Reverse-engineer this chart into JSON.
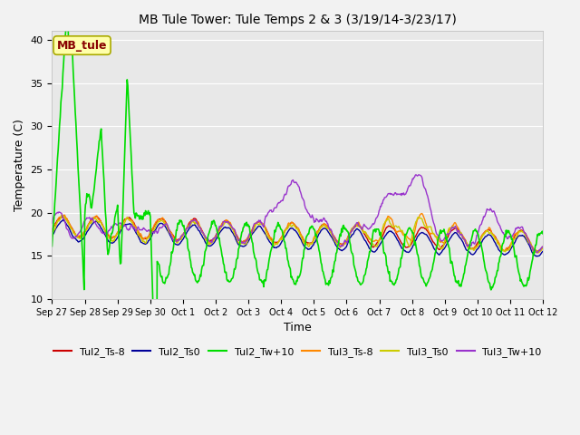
{
  "title": "MB Tule Tower: Tule Temps 2 & 3 (3/19/14-3/23/17)",
  "xlabel": "Time",
  "ylabel": "Temperature (C)",
  "ylim": [
    10,
    41
  ],
  "yticks": [
    10,
    15,
    20,
    25,
    30,
    35,
    40
  ],
  "xlim": [
    0,
    15
  ],
  "plot_bg": "#e8e8e8",
  "fig_bg": "#f2f2f2",
  "grid_color": "#ffffff",
  "series_colors": {
    "Tul2_Ts-8": "#cc0000",
    "Tul2_Ts0": "#000099",
    "Tul2_Tw+10": "#00dd00",
    "Tul3_Ts-8": "#ff8800",
    "Tul3_Ts0": "#cccc00",
    "Tul3_Tw+10": "#9933cc"
  },
  "annotation_text": "MB_tule",
  "annotation_color": "#880000",
  "annotation_bg": "#ffffaa",
  "annotation_border": "#aaaa00",
  "tick_labels": [
    "Sep 27",
    "Sep 28",
    "Sep 29",
    "Sep 30",
    "Oct 1",
    "Oct 2",
    "Oct 3",
    "Oct 4",
    "Oct 5",
    "Oct 6",
    "Oct 7",
    "Oct 8",
    "Oct 9",
    "Oct 10",
    "Oct 11",
    "Oct 12"
  ],
  "legend_names": [
    "Tul2_Ts-8",
    "Tul2_Ts0",
    "Tul2_Tw+10",
    "Tul3_Ts-8",
    "Tul3_Ts0",
    "Tul3_Tw+10"
  ],
  "title_fontsize": 10,
  "tick_fontsize": 7,
  "label_fontsize": 9,
  "legend_fontsize": 8
}
